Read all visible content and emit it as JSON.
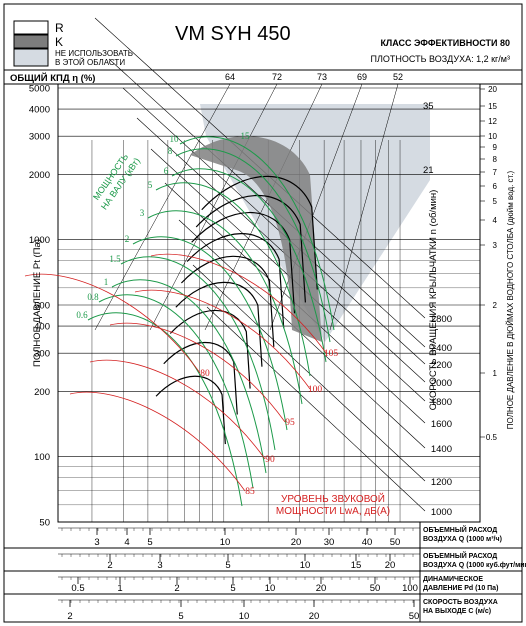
{
  "title": "VM SYH 450",
  "legend": {
    "r_label": "R",
    "k_label": "K",
    "na_line1": "НЕ ИСПОЛЬЗОВАТЬ",
    "na_line2": "В ЭТОЙ ОБЛАСТИ"
  },
  "efficiency_class": "КЛАСС ЭФФЕКТИВНОСТИ 80",
  "air_density": "ПЛОТНОСТЬ ВОЗДУХА: 1,2 кг/м³",
  "colors": {
    "na_region": "#d5dbe2",
    "k_band": "#808080",
    "power": "#1d9a4a",
    "noise": "#d42020",
    "grid": "#000000"
  },
  "chart_data": {
    "type": "line",
    "title": "VM SYH 450",
    "y_axis": {
      "label": "ПОЛНОЕ ДАВЛЕНИЕ Pt (Па)",
      "scale": "log",
      "range": [
        50,
        5000
      ],
      "ticks": [
        "5000",
        "4000",
        "3000",
        "2000",
        "1000",
        "500",
        "400",
        "300",
        "200",
        "100",
        "50"
      ]
    },
    "x_axes": [
      {
        "label_line1": "ОБЪЕМНЫЙ РАСХОД",
        "label_line2": "ВОЗДУХА Q (1000 м³/ч)",
        "ticks": [
          "3",
          "4",
          "5",
          "10",
          "20",
          "30",
          "40",
          "50"
        ]
      },
      {
        "label_line1": "ОБЪЕМНЫЙ РАСХОД",
        "label_line2": "ВОЗДУХА Q (1000 куб.фут/мин)",
        "ticks": [
          "2",
          "3",
          "5",
          "10",
          "15",
          "20"
        ]
      },
      {
        "label_line1": "ДИНАМИЧЕСКОЕ",
        "label_line2": "ДАВЛЕНИЕ Pd (10 Па)",
        "ticks": [
          "0.5",
          "1",
          "2",
          "5",
          "10",
          "20",
          "50",
          "100"
        ]
      },
      {
        "label_line1": "СКОРОСТЬ ВОЗДУХА",
        "label_line2": "НА ВЫХОДЕ С (м/с)",
        "ticks": [
          "2",
          "5",
          "10",
          "20",
          "50"
        ]
      }
    ],
    "efficiency": {
      "label": "ОБЩИЙ КПД η (%)",
      "values": [
        "64",
        "72",
        "73",
        "69",
        "52"
      ]
    },
    "speed": {
      "label": "СКОРОСТЬ ВРАЩЕНИЯ КРЫЛЬЧАТКИ n (об/мин)",
      "values": [
        "2800",
        "2400",
        "2200",
        "2000",
        "1800",
        "1600",
        "1400",
        "1200",
        "1000"
      ]
    },
    "outlet_vel": {
      "values": [
        "35",
        "21"
      ]
    },
    "right_axis": {
      "label": "ПОЛНОЕ ДАВЛЕНИЕ В ДЮЙМАХ ВОДНОГО СТОЛБА (дюйм вод. ст.)",
      "ticks": [
        "20",
        "15",
        "12",
        "10",
        "9",
        "8",
        "7",
        "6",
        "5",
        "4",
        "3",
        "2",
        "1",
        "0.5"
      ]
    },
    "power": {
      "label_line1": "МОЩНОСТЬ",
      "label_line2": "НА ВАЛУ (кВт)",
      "values": [
        "10",
        "8",
        "6",
        "5",
        "3",
        "2",
        "1.5",
        "1",
        "0.8",
        "0.6",
        "15"
      ]
    },
    "noise": {
      "label_line1": "УРОВЕНЬ ЗВУКОВОЙ",
      "label_line2": "МОЩНОСТИ LwA, дБ(А)",
      "values": [
        "105",
        "100",
        "95",
        "90",
        "85",
        "80"
      ]
    }
  }
}
